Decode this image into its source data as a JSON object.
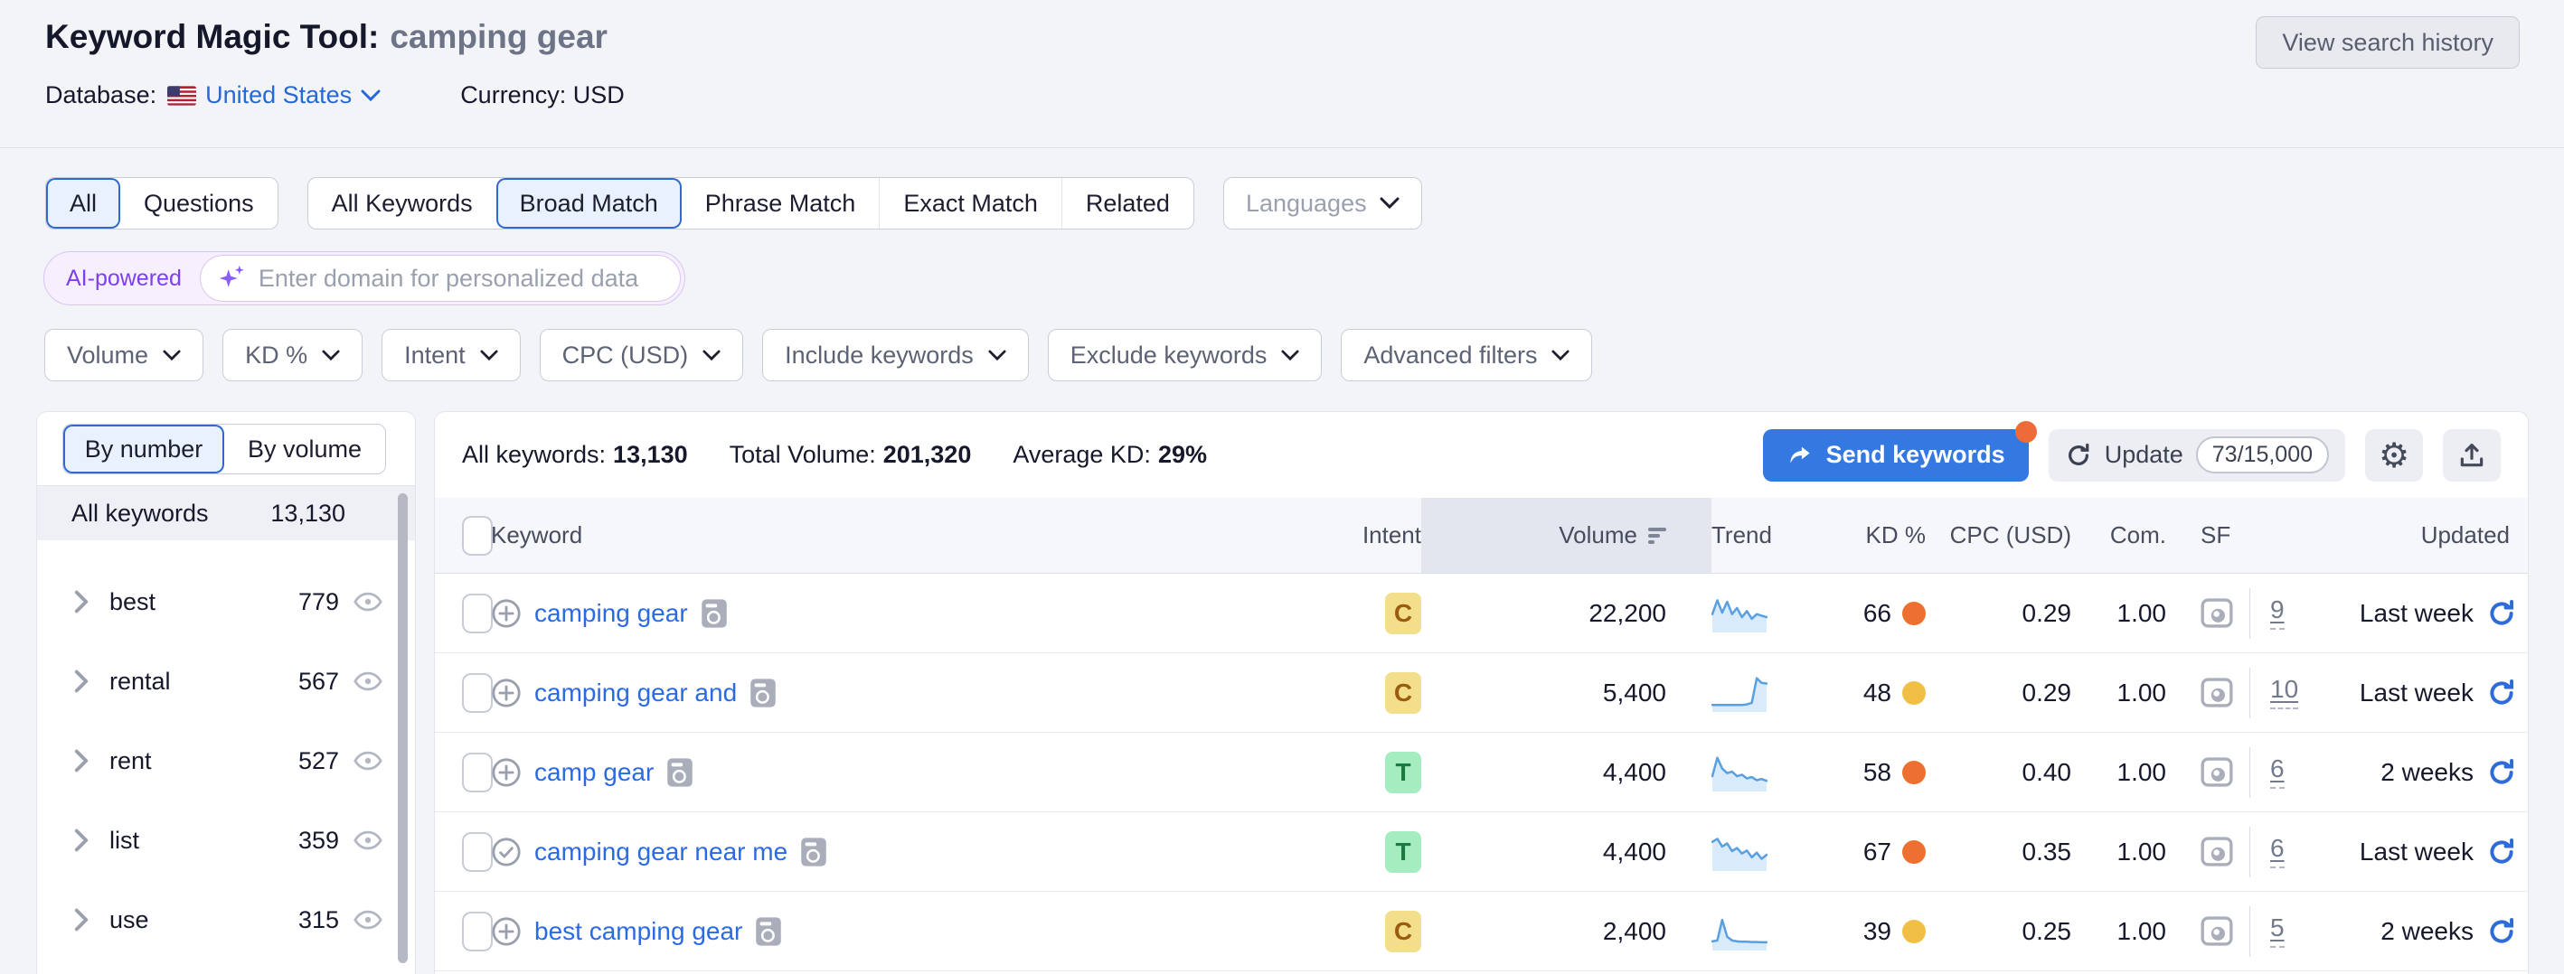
{
  "header": {
    "title": "Keyword Magic Tool:",
    "query": "camping gear",
    "database_label": "Database:",
    "database_value": "United States",
    "currency_label": "Currency:",
    "currency_value": "USD",
    "view_history_label": "View search history"
  },
  "match_tabs": {
    "group1": [
      {
        "label": "All",
        "selected": true
      },
      {
        "label": "Questions",
        "selected": false
      }
    ],
    "group2": [
      {
        "label": "All Keywords",
        "selected": false
      },
      {
        "label": "Broad Match",
        "selected": true
      },
      {
        "label": "Phrase Match",
        "selected": false
      },
      {
        "label": "Exact Match",
        "selected": false
      },
      {
        "label": "Related",
        "selected": false
      }
    ],
    "languages_label": "Languages"
  },
  "ai_bar": {
    "badge": "AI-powered",
    "placeholder": "Enter domain for personalized data"
  },
  "filters": [
    "Volume",
    "KD %",
    "Intent",
    "CPC (USD)",
    "Include keywords",
    "Exclude keywords",
    "Advanced filters"
  ],
  "sidebar": {
    "tabs": [
      {
        "label": "By number",
        "selected": true
      },
      {
        "label": "By volume",
        "selected": false
      }
    ],
    "all_row": {
      "label": "All keywords",
      "count": "13,130"
    },
    "groups": [
      {
        "label": "best",
        "count": "779"
      },
      {
        "label": "rental",
        "count": "567"
      },
      {
        "label": "rent",
        "count": "527"
      },
      {
        "label": "list",
        "count": "359"
      },
      {
        "label": "use",
        "count": "315"
      }
    ]
  },
  "toolbar": {
    "stats": [
      {
        "label": "All keywords:",
        "value": "13,130"
      },
      {
        "label": "Total Volume:",
        "value": "201,320"
      },
      {
        "label": "Average KD:",
        "value": "29%"
      }
    ],
    "send_keywords_label": "Send keywords",
    "update_label": "Update",
    "update_quota": "73/15,000",
    "icons": {
      "settings": "gear-icon",
      "export": "upload-icon",
      "send": "share-arrow-icon",
      "update": "refresh-icon"
    }
  },
  "table": {
    "columns": [
      "Keyword",
      "Intent",
      "Volume",
      "Trend",
      "KD %",
      "CPC (USD)",
      "Com.",
      "SF",
      "Updated"
    ],
    "sorted_by": "Volume",
    "rows": [
      {
        "keyword": "camping gear",
        "added": false,
        "intent": "C",
        "volume": "22,200",
        "kd": "66",
        "kd_level": "orange",
        "cpc": "0.29",
        "com": "1.00",
        "sf": "9",
        "updated": "Last week",
        "trend": [
          0.45,
          0.9,
          0.5,
          0.85,
          0.45,
          0.65,
          0.35,
          0.55,
          0.3,
          0.45,
          0.4,
          0.35
        ]
      },
      {
        "keyword": "camping gear and",
        "added": false,
        "intent": "C",
        "volume": "5,400",
        "kd": "48",
        "kd_level": "amber",
        "cpc": "0.29",
        "com": "1.00",
        "sf": "10",
        "updated": "Last week",
        "trend": [
          0.08,
          0.08,
          0.08,
          0.08,
          0.08,
          0.08,
          0.08,
          0.1,
          0.15,
          0.95,
          0.8,
          0.78
        ]
      },
      {
        "keyword": "camp gear",
        "added": false,
        "intent": "T",
        "volume": "4,400",
        "kd": "58",
        "kd_level": "orange",
        "cpc": "0.40",
        "com": "1.00",
        "sf": "6",
        "updated": "2 weeks",
        "trend": [
          0.35,
          0.95,
          0.6,
          0.45,
          0.5,
          0.35,
          0.4,
          0.28,
          0.32,
          0.22,
          0.26,
          0.2
        ]
      },
      {
        "keyword": "camping gear near me",
        "added": true,
        "intent": "T",
        "volume": "4,400",
        "kd": "67",
        "kd_level": "orange",
        "cpc": "0.35",
        "com": "1.00",
        "sf": "6",
        "updated": "Last week",
        "trend": [
          0.8,
          0.9,
          0.65,
          0.75,
          0.5,
          0.6,
          0.42,
          0.52,
          0.3,
          0.45,
          0.25,
          0.38
        ]
      },
      {
        "keyword": "best camping gear",
        "added": false,
        "intent": "C",
        "volume": "2,400",
        "kd": "39",
        "kd_level": "amber",
        "cpc": "0.25",
        "com": "1.00",
        "sf": "5",
        "updated": "2 weeks",
        "trend": [
          0.15,
          0.18,
          0.85,
          0.3,
          0.18,
          0.15,
          0.14,
          0.14,
          0.13,
          0.13,
          0.12,
          0.12
        ]
      }
    ]
  },
  "colors": {
    "accent_blue": "#2b6be1",
    "selected_tab_bg": "#e9f1fc",
    "selected_tab_border": "#3069cf",
    "intent_c_bg": "#f3de8b",
    "intent_c_text": "#9c5c10",
    "intent_t_bg": "#a5ecc0",
    "intent_t_text": "#177a3f",
    "kd_orange": "#ed7030",
    "kd_amber": "#f1bf45",
    "send_button_bg": "#3478e2",
    "notification_dot": "#ee6a39",
    "ai_purple": "#7d3ff0",
    "sparkline_stroke": "#5a9fe0",
    "sparkline_fill": "#d9eafb"
  }
}
